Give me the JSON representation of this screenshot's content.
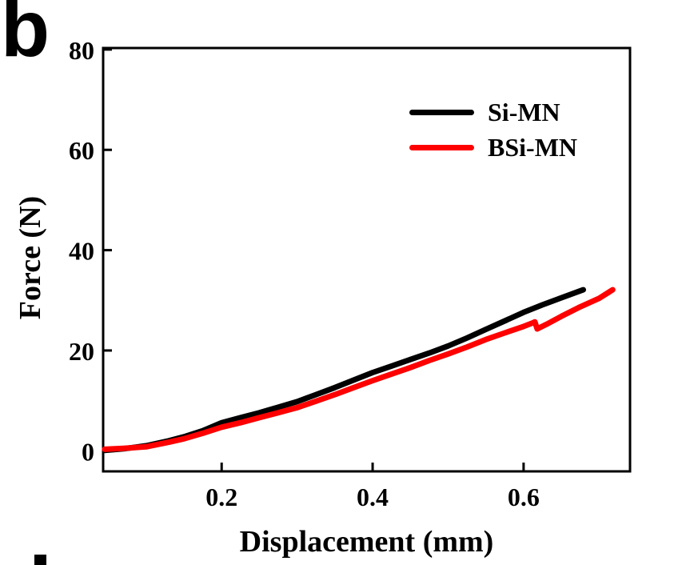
{
  "panel_label": "b",
  "colors": {
    "axis": "#000000",
    "background": "#ffffff",
    "si_mn": "#000000",
    "bsi_mn": "#ff0000"
  },
  "chart_data": {
    "type": "line",
    "title": "",
    "xlabel": "Displacement (mm)",
    "ylabel": "Force (N)",
    "xlim": [
      0.043,
      0.741
    ],
    "ylim": [
      -4.1,
      80.3
    ],
    "grid": false,
    "legend_position": "inside-top-right",
    "x_ticks": [
      {
        "value": 0.2,
        "label": "0.2"
      },
      {
        "value": 0.4,
        "label": "0.4"
      },
      {
        "value": 0.6,
        "label": "0.6"
      }
    ],
    "y_ticks": [
      {
        "value": 0,
        "label": "0"
      },
      {
        "value": 20,
        "label": "20"
      },
      {
        "value": 40,
        "label": "40"
      },
      {
        "value": 60,
        "label": "60"
      },
      {
        "value": 80,
        "label": "80"
      }
    ],
    "series": [
      {
        "name": "Si-MN",
        "color": "#000000",
        "points": [
          [
            0.045,
            0.1
          ],
          [
            0.07,
            0.4
          ],
          [
            0.1,
            1.0
          ],
          [
            0.13,
            2.0
          ],
          [
            0.15,
            2.8
          ],
          [
            0.175,
            4.0
          ],
          [
            0.2,
            5.6
          ],
          [
            0.225,
            6.6
          ],
          [
            0.25,
            7.6
          ],
          [
            0.275,
            8.7
          ],
          [
            0.3,
            9.8
          ],
          [
            0.325,
            11.2
          ],
          [
            0.35,
            12.6
          ],
          [
            0.375,
            14.1
          ],
          [
            0.4,
            15.6
          ],
          [
            0.425,
            16.9
          ],
          [
            0.45,
            18.2
          ],
          [
            0.475,
            19.5
          ],
          [
            0.5,
            20.9
          ],
          [
            0.525,
            22.5
          ],
          [
            0.55,
            24.2
          ],
          [
            0.575,
            25.9
          ],
          [
            0.6,
            27.6
          ],
          [
            0.625,
            29.1
          ],
          [
            0.65,
            30.5
          ],
          [
            0.679,
            32.1
          ]
        ]
      },
      {
        "name": "BSi-MN",
        "color": "#ff0000",
        "points": [
          [
            0.045,
            0.3
          ],
          [
            0.07,
            0.5
          ],
          [
            0.1,
            0.8
          ],
          [
            0.13,
            1.7
          ],
          [
            0.15,
            2.4
          ],
          [
            0.175,
            3.5
          ],
          [
            0.2,
            4.7
          ],
          [
            0.225,
            5.6
          ],
          [
            0.25,
            6.6
          ],
          [
            0.275,
            7.6
          ],
          [
            0.3,
            8.6
          ],
          [
            0.325,
            9.9
          ],
          [
            0.35,
            11.2
          ],
          [
            0.375,
            12.6
          ],
          [
            0.4,
            14.0
          ],
          [
            0.425,
            15.3
          ],
          [
            0.45,
            16.6
          ],
          [
            0.475,
            18.0
          ],
          [
            0.5,
            19.3
          ],
          [
            0.525,
            20.7
          ],
          [
            0.55,
            22.2
          ],
          [
            0.575,
            23.5
          ],
          [
            0.6,
            24.8
          ],
          [
            0.612,
            25.5
          ],
          [
            0.615,
            25.7
          ],
          [
            0.618,
            24.3
          ],
          [
            0.63,
            25.2
          ],
          [
            0.65,
            26.8
          ],
          [
            0.675,
            28.7
          ],
          [
            0.7,
            30.4
          ],
          [
            0.718,
            32.1
          ]
        ]
      }
    ]
  }
}
